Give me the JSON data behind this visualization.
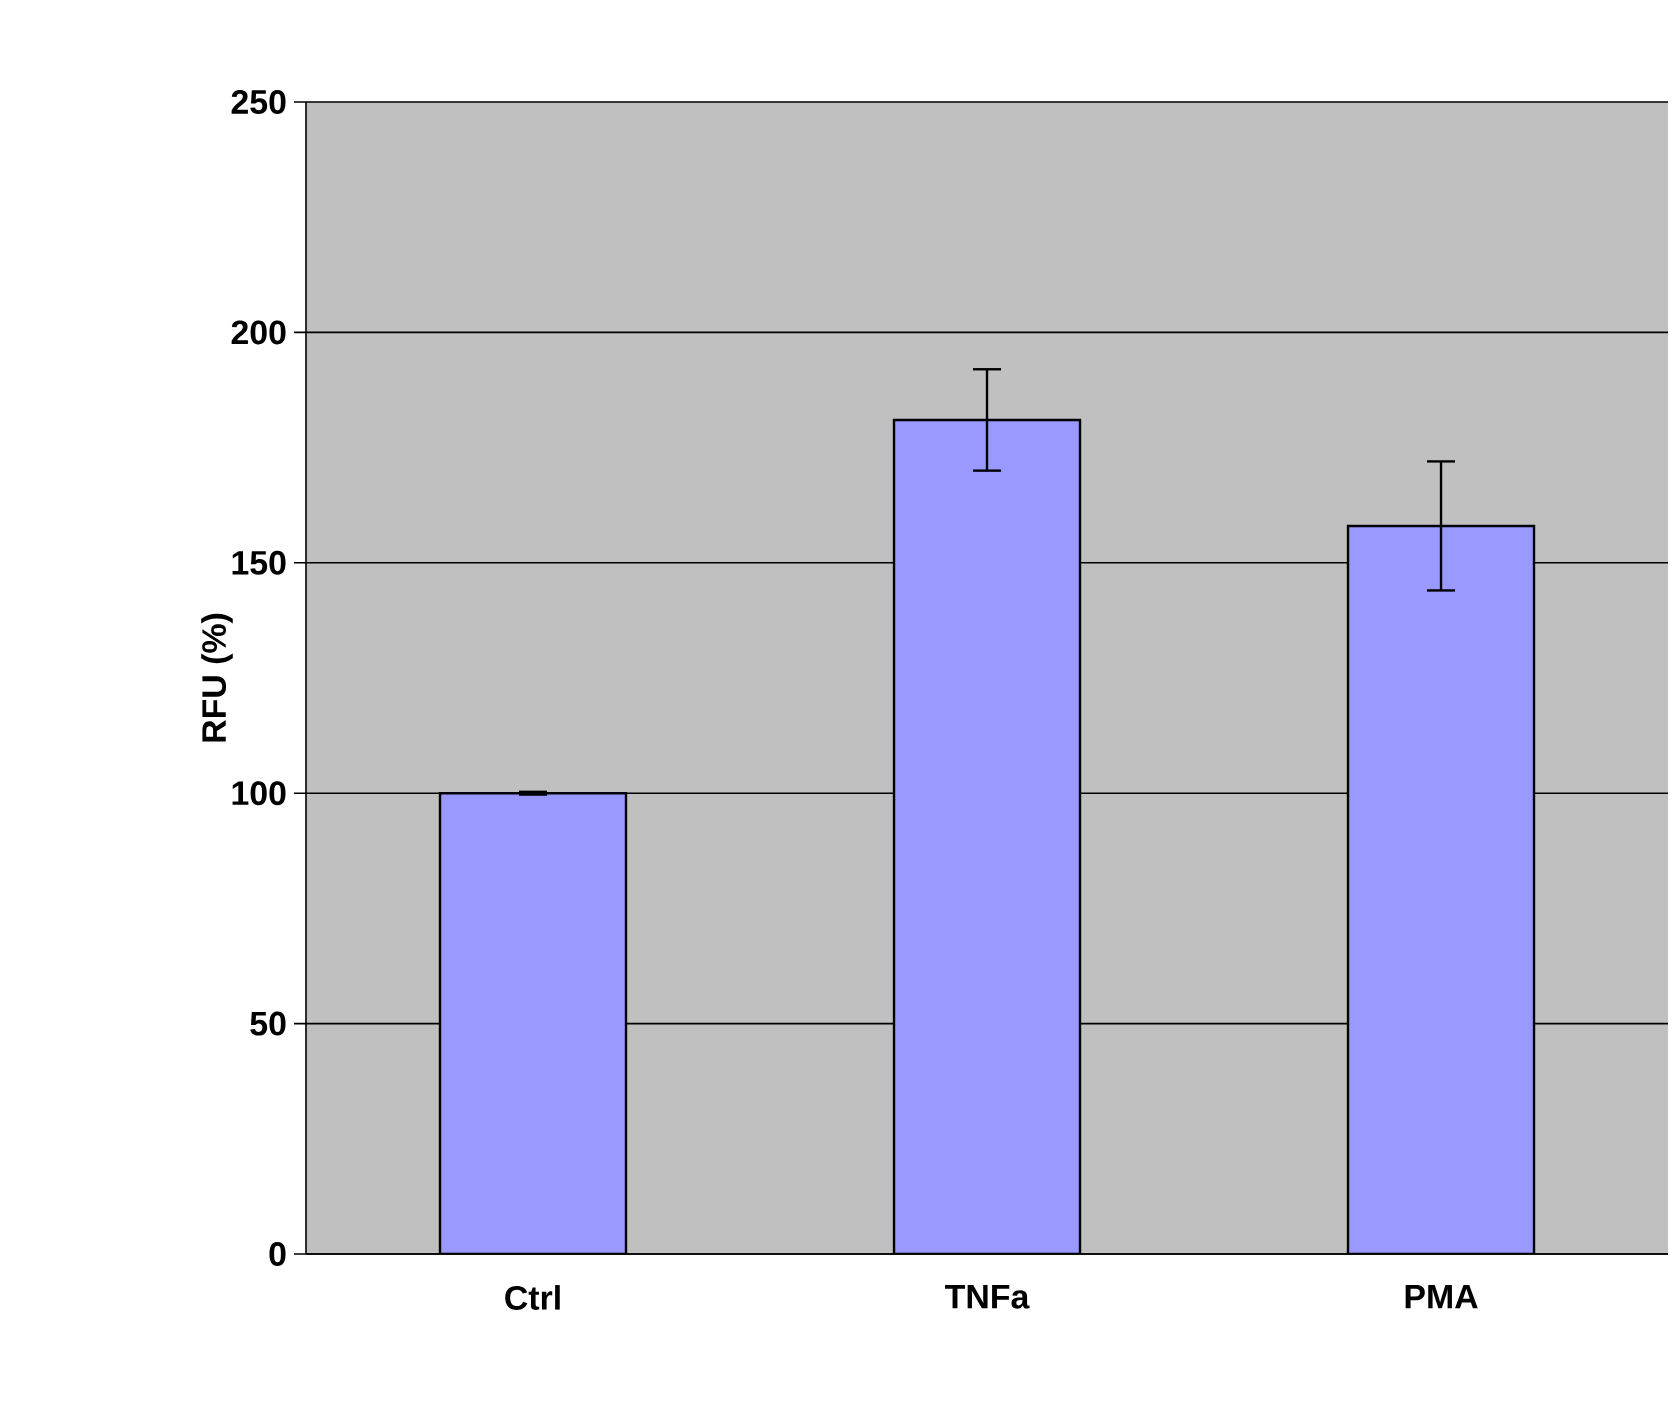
{
  "chart_data": {
    "type": "bar",
    "ylabel": "RFU (%)",
    "categories": [
      "Ctrl",
      "TNFa",
      "PMA"
    ],
    "values": [
      100,
      181,
      158
    ],
    "errors": [
      0.3,
      11,
      14
    ],
    "color": "#9999ff",
    "ylim": [
      0,
      250
    ],
    "yticks": [
      0,
      50,
      100,
      150,
      200,
      250
    ],
    "grid": "y"
  }
}
